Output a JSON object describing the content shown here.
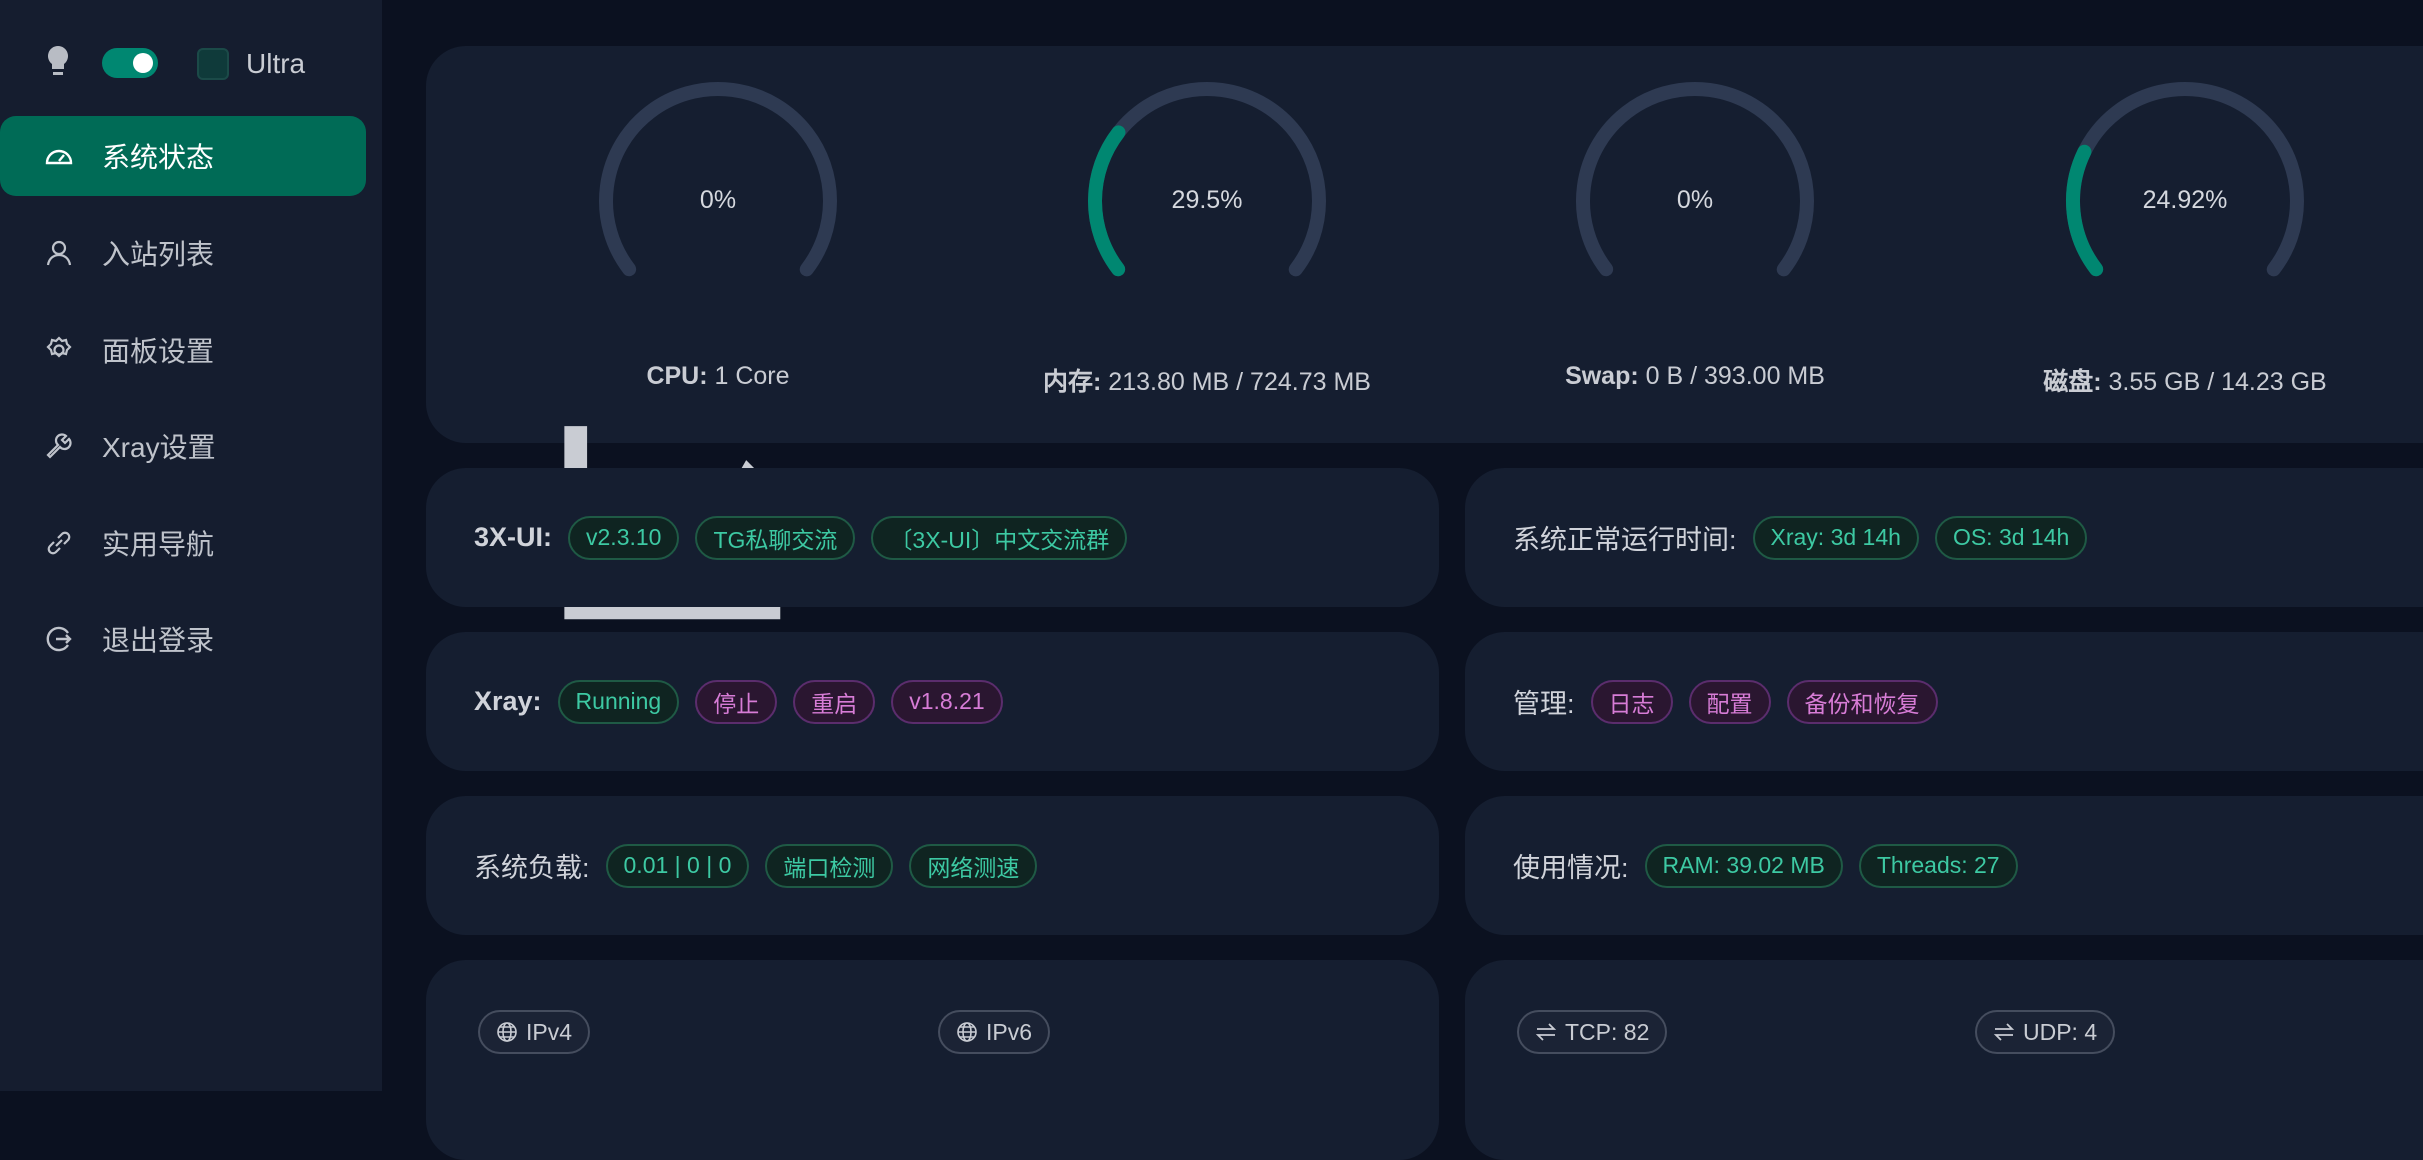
{
  "sidebar": {
    "ultra_label": "Ultra",
    "theme_toggle_on": true,
    "items": [
      {
        "label": "系统状态",
        "icon": "dashboard-icon",
        "active": true
      },
      {
        "label": "入站列表",
        "icon": "user-icon"
      },
      {
        "label": "面板设置",
        "icon": "gear-icon"
      },
      {
        "label": "Xray设置",
        "icon": "wrench-icon"
      },
      {
        "label": "实用导航",
        "icon": "link-icon"
      },
      {
        "label": "退出登录",
        "icon": "logout-icon"
      }
    ]
  },
  "gauges": [
    {
      "value": "0%",
      "percent": 0,
      "label_key": "CPU:",
      "label_val": "1 Core"
    },
    {
      "value": "29.5%",
      "percent": 29.5,
      "label_key": "内存:",
      "label_val": "213.80 MB / 724.73 MB"
    },
    {
      "value": "0%",
      "percent": 0,
      "label_key": "Swap:",
      "label_val": "0 B / 393.00 MB"
    },
    {
      "value": "24.92%",
      "percent": 24.92,
      "label_key": "磁盘:",
      "label_val": "3.55 GB / 14.23 GB"
    }
  ],
  "panel": {
    "label": "3X-UI:",
    "tags": [
      "v2.3.10",
      "TG私聊交流",
      "〔3X-UI〕中文交流群"
    ]
  },
  "uptime": {
    "label": "系统正常运行时间:",
    "tags": [
      "Xray: 3d 14h",
      "OS: 3d 14h"
    ]
  },
  "xray": {
    "label": "Xray:",
    "status": "Running",
    "tags": [
      "停止",
      "重启",
      "v1.8.21"
    ]
  },
  "manage": {
    "label": "管理:",
    "tags": [
      "日志",
      "配置",
      "备份和恢复"
    ]
  },
  "load": {
    "label": "系统负载:",
    "tags": [
      "0.01 | 0 | 0",
      "端口检测",
      "网络测速"
    ]
  },
  "usage": {
    "label": "使用情况:",
    "tags": [
      "RAM: 39.02 MB",
      "Threads: 27"
    ]
  },
  "ip": {
    "v4": "IPv4",
    "v6": "IPv6"
  },
  "conn": {
    "tcp": "TCP: 82",
    "udp": "UDP: 4"
  },
  "colors": {
    "accent": "#008771",
    "active_bg": "#006b56",
    "tag_green": "#3dc9a3",
    "tag_purple": "#d77cd6",
    "track": "#2e3a52"
  }
}
